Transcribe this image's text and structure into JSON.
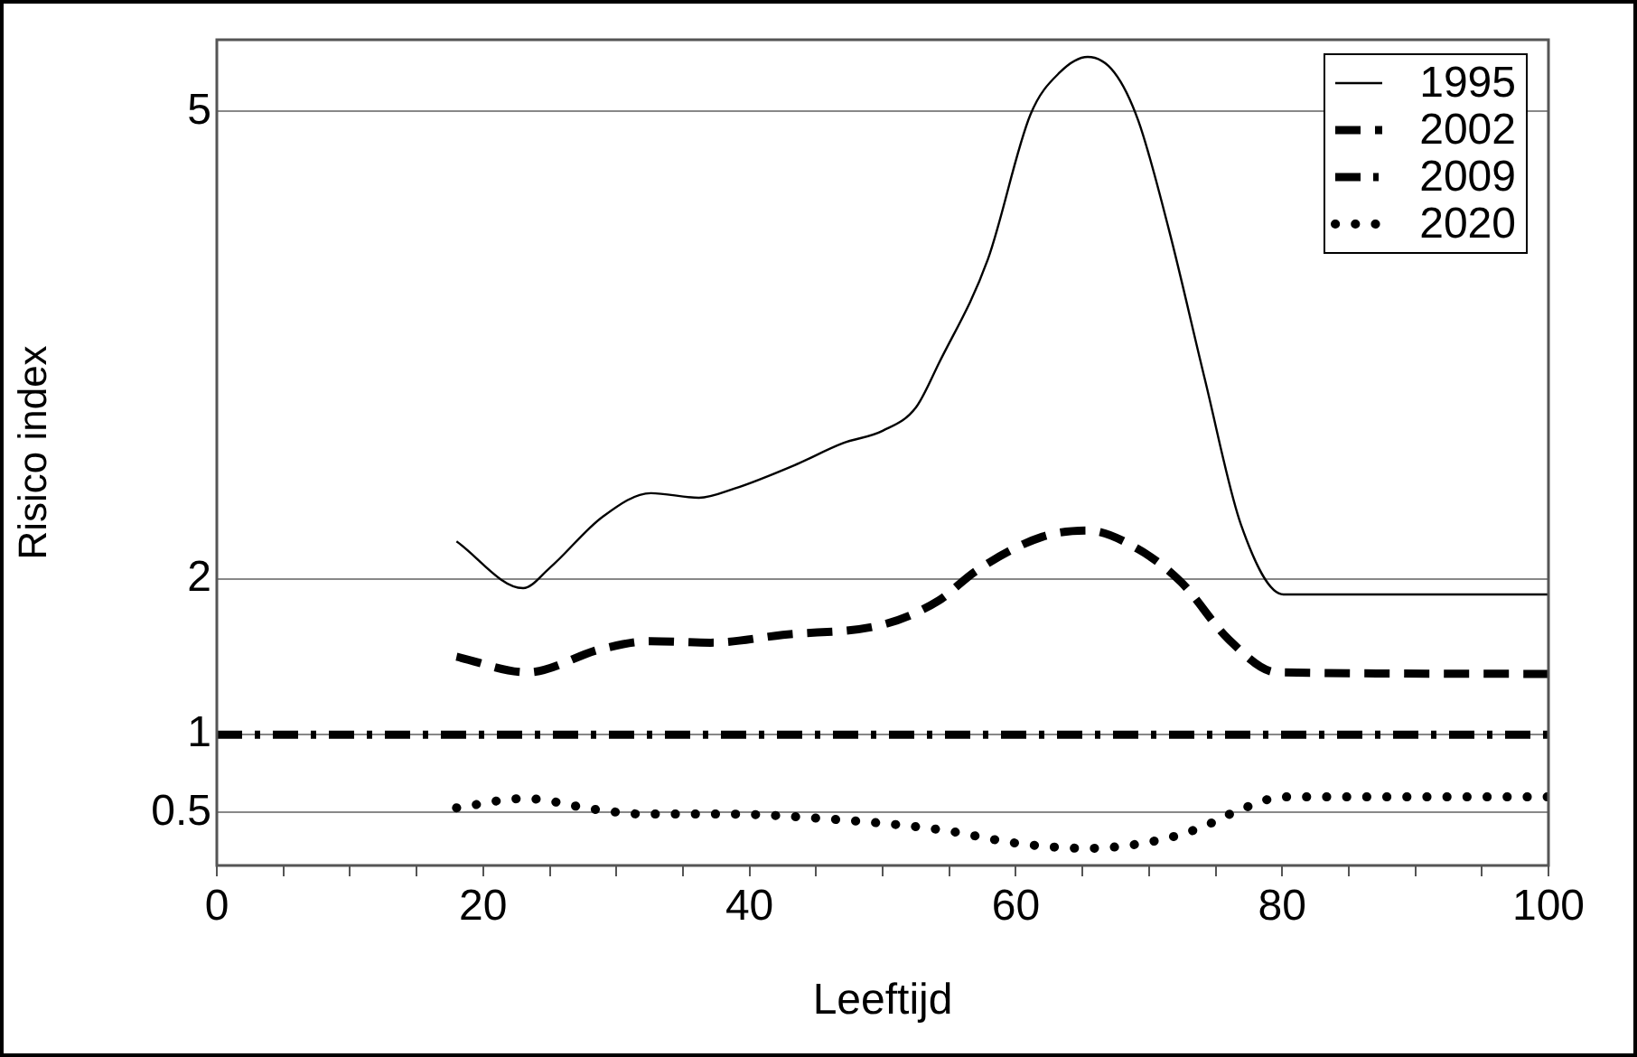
{
  "chart_data": {
    "type": "line",
    "xlabel": "Leeftijd",
    "ylabel": "Risico index",
    "xlim": [
      0,
      100
    ],
    "ylim": [
      0.16,
      5.46
    ],
    "xticks": [
      0,
      {
        "value": 5,
        "label": null
      },
      {
        "value": 10,
        "label": null
      },
      {
        "value": 15,
        "label": null
      },
      20,
      {
        "value": 25,
        "label": null
      },
      {
        "value": 30,
        "label": null
      },
      {
        "value": 35,
        "label": null
      },
      40,
      {
        "value": 45,
        "label": null
      },
      {
        "value": 50,
        "label": null
      },
      {
        "value": 55,
        "label": null
      },
      60,
      {
        "value": 65,
        "label": null
      },
      {
        "value": 70,
        "label": null
      },
      {
        "value": 75,
        "label": null
      },
      80,
      {
        "value": 85,
        "label": null
      },
      {
        "value": 90,
        "label": null
      },
      {
        "value": 95,
        "label": null
      },
      100
    ],
    "yticks": [
      0.5,
      1,
      2,
      5
    ],
    "grid": "y",
    "legend": "top right",
    "series": [
      {
        "name": "1995",
        "color": "#000000",
        "line_style": "solid",
        "x": [
          18,
          23,
          25,
          29,
          32.6,
          36.2,
          38.9,
          43.4,
          47,
          50,
          52.5,
          54.2,
          57.9,
          61.1,
          63.3,
          65.4,
          67.4,
          69.2,
          71.5,
          74.2,
          76.9,
          80.1,
          100
        ],
        "values": [
          2.24,
          1.94,
          2.07,
          2.4,
          2.55,
          2.52,
          2.58,
          2.73,
          2.87,
          2.95,
          3.1,
          3.38,
          4.05,
          4.98,
          5.25,
          5.35,
          5.25,
          4.94,
          4.24,
          3.28,
          2.35,
          1.9,
          1.9
        ]
      },
      {
        "name": "2002",
        "color": "#000000",
        "line_style": "dashed",
        "x": [
          18,
          23.3,
          28.9,
          32.6,
          37.1,
          42.5,
          50.2,
          54.2,
          57,
          62,
          65.4,
          69.2,
          72.4,
          76,
          79.6,
          100
        ],
        "values": [
          1.5,
          1.4,
          1.55,
          1.6,
          1.59,
          1.64,
          1.71,
          1.86,
          2.05,
          2.27,
          2.31,
          2.19,
          1.98,
          1.61,
          1.4,
          1.39
        ]
      },
      {
        "name": "2009",
        "color": "#000000",
        "line_style": "dashdot",
        "x": [
          0,
          100
        ],
        "values": [
          1,
          1
        ]
      },
      {
        "name": "2020",
        "color": "#000000",
        "line_style": "dotted",
        "x": [
          18,
          23.1,
          28.4,
          32,
          38.4,
          45.7,
          54.3,
          60.3,
          65.4,
          70.6,
          73.8,
          76.9,
          80.1,
          100
        ],
        "values": [
          0.53,
          0.59,
          0.52,
          0.49,
          0.49,
          0.46,
          0.39,
          0.3,
          0.27,
          0.32,
          0.4,
          0.52,
          0.6,
          0.6
        ]
      }
    ]
  }
}
